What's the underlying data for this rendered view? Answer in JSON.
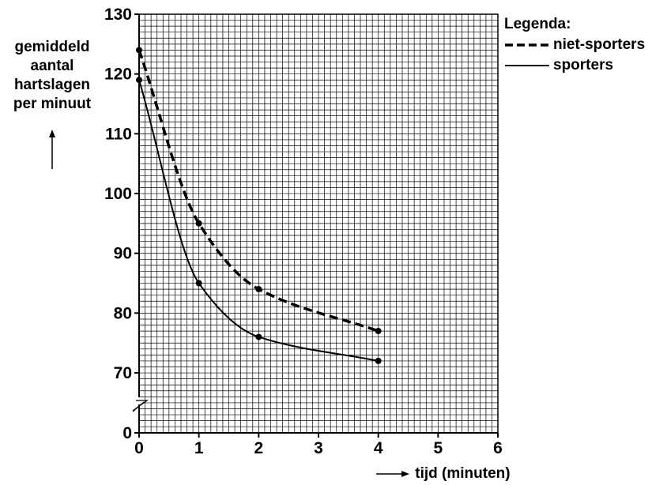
{
  "chart_data": {
    "type": "line",
    "ylabel_lines": [
      "gemiddeld",
      "aantal",
      "hartslagen",
      "per minuut"
    ],
    "xlabel": "tijd (minuten)",
    "xlim": [
      0,
      6
    ],
    "ylim": [
      70,
      130
    ],
    "y_axis_break": true,
    "x_ticks": [
      0,
      1,
      2,
      3,
      4,
      5,
      6
    ],
    "y_ticks": [
      {
        "value": 0,
        "label": "0"
      },
      {
        "value": 70,
        "label": "70"
      },
      {
        "value": 80,
        "label": "80"
      },
      {
        "value": 90,
        "label": "90"
      },
      {
        "value": 100,
        "label": "100"
      },
      {
        "value": 110,
        "label": "110"
      },
      {
        "value": 120,
        "label": "120"
      },
      {
        "value": 130,
        "label": "130"
      }
    ],
    "grid": true,
    "legend_title": "Legenda:",
    "legend_position": "top-right",
    "series": [
      {
        "name": "niet-sporters",
        "style": "dashed",
        "x": [
          0,
          1,
          2,
          4
        ],
        "y": [
          124,
          95,
          84,
          77
        ]
      },
      {
        "name": "sporters",
        "style": "solid",
        "x": [
          0,
          1,
          2,
          4
        ],
        "y": [
          119,
          85,
          76,
          72
        ]
      }
    ]
  }
}
